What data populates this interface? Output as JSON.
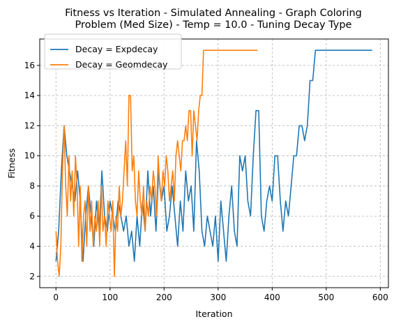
{
  "chart_data": {
    "type": "line",
    "title": "Fitness vs Iteration - Simulated Annealing - Graph Coloring\nProblem (Med Size) - Temp = 10.0 - Tuning Decay Type",
    "xlabel": "Iteration",
    "ylabel": "Fitness",
    "xlim": [
      -30,
      615
    ],
    "ylim": [
      1.25,
      17.75
    ],
    "xticks": [
      0,
      100,
      200,
      300,
      400,
      500,
      600
    ],
    "yticks": [
      2,
      4,
      6,
      8,
      10,
      12,
      14,
      16
    ],
    "grid": true,
    "legend_position": "top-left",
    "series": [
      {
        "name": "Decay = Expdecay",
        "color": "#1f77b4",
        "points": [
          [
            0,
            3
          ],
          [
            5,
            5
          ],
          [
            10,
            9
          ],
          [
            15,
            12
          ],
          [
            20,
            10
          ],
          [
            25,
            9
          ],
          [
            30,
            8
          ],
          [
            35,
            7
          ],
          [
            40,
            9
          ],
          [
            45,
            7
          ],
          [
            50,
            3
          ],
          [
            55,
            6
          ],
          [
            60,
            8
          ],
          [
            65,
            6
          ],
          [
            70,
            4
          ],
          [
            75,
            7
          ],
          [
            80,
            5
          ],
          [
            85,
            9
          ],
          [
            90,
            6
          ],
          [
            95,
            5
          ],
          [
            100,
            7
          ],
          [
            105,
            6
          ],
          [
            110,
            5
          ],
          [
            115,
            7
          ],
          [
            120,
            6
          ],
          [
            125,
            5
          ],
          [
            130,
            6
          ],
          [
            135,
            4
          ],
          [
            140,
            5
          ],
          [
            145,
            3
          ],
          [
            150,
            6
          ],
          [
            155,
            4
          ],
          [
            160,
            7
          ],
          [
            165,
            5
          ],
          [
            170,
            9
          ],
          [
            175,
            6
          ],
          [
            180,
            8
          ],
          [
            185,
            5
          ],
          [
            190,
            9
          ],
          [
            195,
            7
          ],
          [
            200,
            8
          ],
          [
            205,
            5
          ],
          [
            210,
            6
          ],
          [
            215,
            8
          ],
          [
            220,
            6
          ],
          [
            225,
            4
          ],
          [
            230,
            7
          ],
          [
            235,
            5
          ],
          [
            240,
            9
          ],
          [
            245,
            7
          ],
          [
            250,
            8
          ],
          [
            255,
            5
          ],
          [
            260,
            11
          ],
          [
            265,
            9
          ],
          [
            270,
            5
          ],
          [
            275,
            4
          ],
          [
            280,
            6
          ],
          [
            285,
            5
          ],
          [
            290,
            4
          ],
          [
            295,
            6
          ],
          [
            300,
            3
          ],
          [
            305,
            7
          ],
          [
            310,
            5
          ],
          [
            315,
            3
          ],
          [
            320,
            6
          ],
          [
            325,
            8
          ],
          [
            330,
            5
          ],
          [
            335,
            4
          ],
          [
            340,
            10
          ],
          [
            345,
            9
          ],
          [
            350,
            10
          ],
          [
            355,
            7
          ],
          [
            360,
            6
          ],
          [
            365,
            10
          ],
          [
            370,
            13
          ],
          [
            375,
            13
          ],
          [
            380,
            6
          ],
          [
            385,
            5
          ],
          [
            390,
            7
          ],
          [
            395,
            8
          ],
          [
            400,
            7
          ],
          [
            405,
            10
          ],
          [
            410,
            10
          ],
          [
            415,
            7
          ],
          [
            420,
            5
          ],
          [
            425,
            7
          ],
          [
            430,
            6
          ],
          [
            435,
            8
          ],
          [
            440,
            10
          ],
          [
            445,
            10
          ],
          [
            450,
            12
          ],
          [
            455,
            12
          ],
          [
            460,
            11
          ],
          [
            465,
            12
          ],
          [
            470,
            15
          ],
          [
            475,
            15
          ],
          [
            480,
            17
          ],
          [
            485,
            17
          ],
          [
            500,
            17
          ],
          [
            520,
            17
          ],
          [
            540,
            17
          ],
          [
            560,
            17
          ],
          [
            585,
            17
          ]
        ]
      },
      {
        "name": "Decay = Geomdecay",
        "color": "#ff7f0e",
        "points": [
          [
            0,
            5
          ],
          [
            3,
            3
          ],
          [
            6,
            2
          ],
          [
            9,
            4
          ],
          [
            12,
            9
          ],
          [
            15,
            12
          ],
          [
            18,
            8
          ],
          [
            21,
            6
          ],
          [
            24,
            10
          ],
          [
            27,
            7
          ],
          [
            30,
            9
          ],
          [
            33,
            6
          ],
          [
            36,
            10
          ],
          [
            39,
            8
          ],
          [
            42,
            4
          ],
          [
            45,
            8
          ],
          [
            48,
            3
          ],
          [
            51,
            6
          ],
          [
            54,
            7
          ],
          [
            57,
            4
          ],
          [
            60,
            8
          ],
          [
            63,
            5
          ],
          [
            66,
            7
          ],
          [
            69,
            4
          ],
          [
            72,
            6
          ],
          [
            75,
            5
          ],
          [
            78,
            7
          ],
          [
            81,
            4
          ],
          [
            84,
            8
          ],
          [
            87,
            5
          ],
          [
            90,
            6
          ],
          [
            93,
            4
          ],
          [
            96,
            7
          ],
          [
            99,
            6
          ],
          [
            102,
            5
          ],
          [
            105,
            7
          ],
          [
            108,
            2
          ],
          [
            111,
            6
          ],
          [
            114,
            5
          ],
          [
            117,
            8
          ],
          [
            120,
            6
          ],
          [
            123,
            7
          ],
          [
            126,
            9
          ],
          [
            129,
            11
          ],
          [
            132,
            8
          ],
          [
            135,
            14
          ],
          [
            138,
            14
          ],
          [
            141,
            9
          ],
          [
            144,
            10
          ],
          [
            147,
            7
          ],
          [
            150,
            6
          ],
          [
            153,
            9
          ],
          [
            156,
            7
          ],
          [
            159,
            6
          ],
          [
            162,
            8
          ],
          [
            165,
            5
          ],
          [
            168,
            7
          ],
          [
            171,
            6
          ],
          [
            174,
            8
          ],
          [
            177,
            7
          ],
          [
            180,
            9
          ],
          [
            183,
            8
          ],
          [
            186,
            6
          ],
          [
            189,
            10
          ],
          [
            192,
            8
          ],
          [
            195,
            7
          ],
          [
            198,
            9
          ],
          [
            201,
            8
          ],
          [
            204,
            10
          ],
          [
            207,
            9
          ],
          [
            210,
            7
          ],
          [
            213,
            8
          ],
          [
            216,
            9
          ],
          [
            219,
            7
          ],
          [
            222,
            10
          ],
          [
            225,
            11
          ],
          [
            228,
            10
          ],
          [
            231,
            9
          ],
          [
            234,
            11
          ],
          [
            237,
            11
          ],
          [
            240,
            12
          ],
          [
            243,
            11
          ],
          [
            246,
            13
          ],
          [
            249,
            13
          ],
          [
            252,
            10
          ],
          [
            255,
            13
          ],
          [
            258,
            12
          ],
          [
            261,
            11
          ],
          [
            264,
            13
          ],
          [
            267,
            14
          ],
          [
            270,
            14
          ],
          [
            273,
            17
          ],
          [
            290,
            17
          ],
          [
            310,
            17
          ],
          [
            330,
            17
          ],
          [
            350,
            17
          ],
          [
            373,
            17
          ]
        ]
      }
    ]
  }
}
